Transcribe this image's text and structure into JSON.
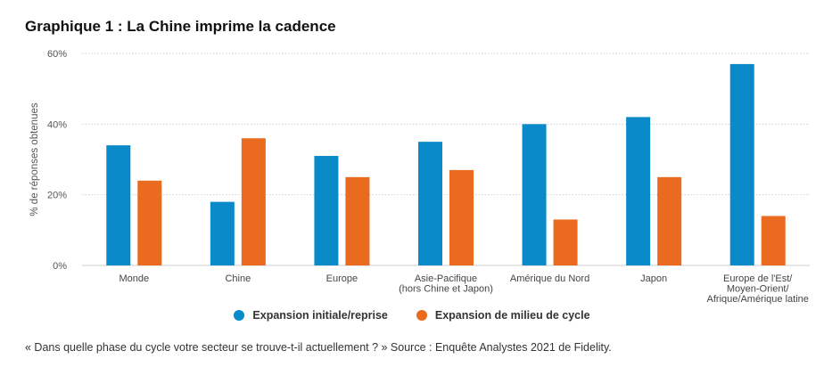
{
  "title": "Graphique 1 : La Chine imprime la cadence",
  "source": "« Dans quelle phase du cycle votre secteur se trouve-t-il actuellement ? » Source : Enquête Analystes 2021 de Fidelity.",
  "colors": {
    "series1": "#0a8ac9",
    "series2": "#ea6a1f",
    "grid": "#cfcfcf",
    "axis_text": "#555555"
  },
  "chart_data": {
    "type": "bar",
    "title": "Graphique 1 : La Chine imprime la cadence",
    "xlabel": "",
    "ylabel": "% de réponses obtenues",
    "ylim": [
      0,
      60
    ],
    "yticks": [
      0,
      20,
      40,
      60
    ],
    "ytick_labels": [
      "0%",
      "20%",
      "40%",
      "60%"
    ],
    "categories": [
      [
        "Monde"
      ],
      [
        "Chine"
      ],
      [
        "Europe"
      ],
      [
        "Asie-Pacifique",
        "(hors Chine et Japon)"
      ],
      [
        "Amérique du Nord"
      ],
      [
        "Japon"
      ],
      [
        "Europe de l'Est/",
        "Moyen-Orient/",
        "Afrique/Amérique latine"
      ]
    ],
    "series": [
      {
        "name": "Expansion initiale/reprise",
        "values": [
          34,
          18,
          31,
          35,
          40,
          42,
          57
        ]
      },
      {
        "name": "Expansion de milieu de cycle",
        "values": [
          24,
          36,
          25,
          27,
          13,
          25,
          14
        ]
      }
    ],
    "grid": true,
    "legend_position": "bottom-center"
  }
}
